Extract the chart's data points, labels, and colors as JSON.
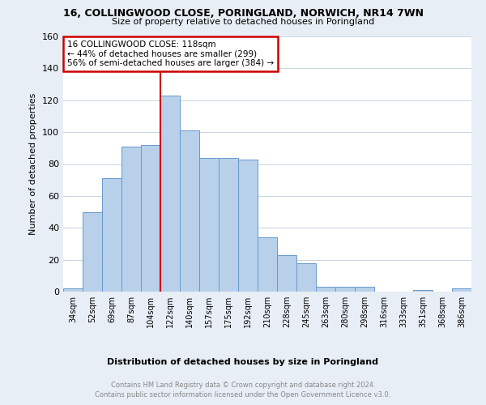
{
  "title_line1": "16, COLLINGWOOD CLOSE, PORINGLAND, NORWICH, NR14 7WN",
  "title_line2": "Size of property relative to detached houses in Poringland",
  "xlabel": "Distribution of detached houses by size in Poringland",
  "ylabel": "Number of detached properties",
  "bar_labels": [
    "34sqm",
    "52sqm",
    "69sqm",
    "87sqm",
    "104sqm",
    "122sqm",
    "140sqm",
    "157sqm",
    "175sqm",
    "192sqm",
    "210sqm",
    "228sqm",
    "245sqm",
    "263sqm",
    "280sqm",
    "298sqm",
    "316sqm",
    "333sqm",
    "351sqm",
    "368sqm",
    "386sqm"
  ],
  "bar_heights": [
    2,
    50,
    71,
    91,
    92,
    123,
    101,
    84,
    84,
    83,
    34,
    23,
    18,
    3,
    3,
    3,
    0,
    0,
    1,
    0,
    2
  ],
  "bar_color": "#b8d0ea",
  "bar_edge_color": "#6699cc",
  "vline_color": "#cc0000",
  "annotation_text": "16 COLLINGWOOD CLOSE: 118sqm\n← 44% of detached houses are smaller (299)\n56% of semi-detached houses are larger (384) →",
  "annotation_box_color": "#ffffff",
  "annotation_box_edge": "#cc0000",
  "ylim": [
    0,
    160
  ],
  "yticks": [
    0,
    20,
    40,
    60,
    80,
    100,
    120,
    140,
    160
  ],
  "footer_line1": "Contains HM Land Registry data © Crown copyright and database right 2024.",
  "footer_line2": "Contains public sector information licensed under the Open Government Licence v3.0.",
  "bg_color": "#e8eef5",
  "plot_bg_color": "#ffffff",
  "grid_color": "#c8d4e0"
}
